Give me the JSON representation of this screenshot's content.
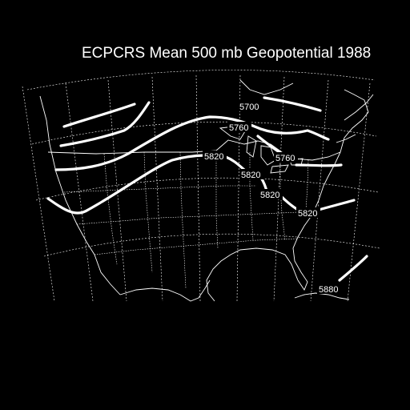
{
  "map": {
    "title": "ECPCRS Mean 500 mb Geopotential 1988",
    "colors": {
      "background": "#000000",
      "foreground": "#ffffff"
    },
    "contour_labels": [
      "5700",
      "5760",
      "5760",
      "5820",
      "5820",
      "5820",
      "5820",
      "5880"
    ]
  }
}
